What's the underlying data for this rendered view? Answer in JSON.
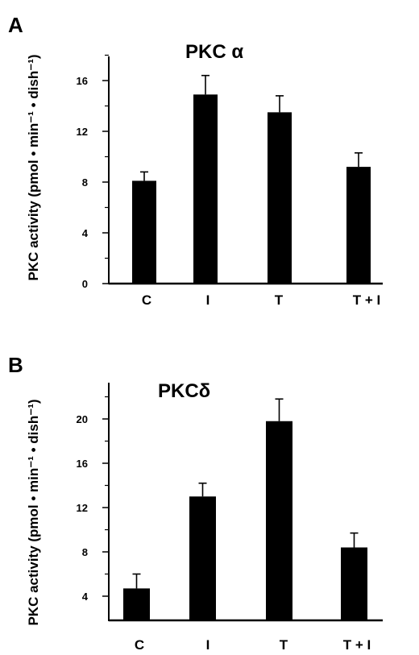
{
  "chart_data": [
    {
      "type": "bar",
      "panel": "A",
      "title": "PKC α",
      "ylabel": "PKC activity (pmol • min⁻¹ • dish⁻¹)",
      "xlabel": "",
      "categories": [
        "C",
        "I",
        "T",
        "T + I"
      ],
      "values": [
        8.1,
        14.9,
        13.5,
        9.2
      ],
      "errors": [
        0.7,
        1.5,
        1.3,
        1.1
      ],
      "ylim": [
        0,
        18
      ],
      "yticks": [
        0,
        4,
        8,
        12,
        16
      ],
      "yticklabels": [
        "0",
        "4",
        "8",
        "12",
        "16"
      ],
      "grid": false,
      "bar_color": "#000000"
    },
    {
      "type": "bar",
      "panel": "B",
      "title": "PKCδ",
      "ylabel": "PKC activity (pmol • min⁻¹ • dish⁻¹)",
      "xlabel": "",
      "categories": [
        "C",
        "I",
        "T",
        "T + I"
      ],
      "values": [
        4.7,
        13.0,
        19.8,
        8.4
      ],
      "errors": [
        1.3,
        1.2,
        2.0,
        1.3
      ],
      "ylim": [
        2,
        23
      ],
      "yticks": [
        4,
        8,
        12,
        16,
        20
      ],
      "yticklabels": [
        "4",
        "8",
        "12",
        "16",
        "20"
      ],
      "grid": false,
      "bar_color": "#000000"
    }
  ]
}
